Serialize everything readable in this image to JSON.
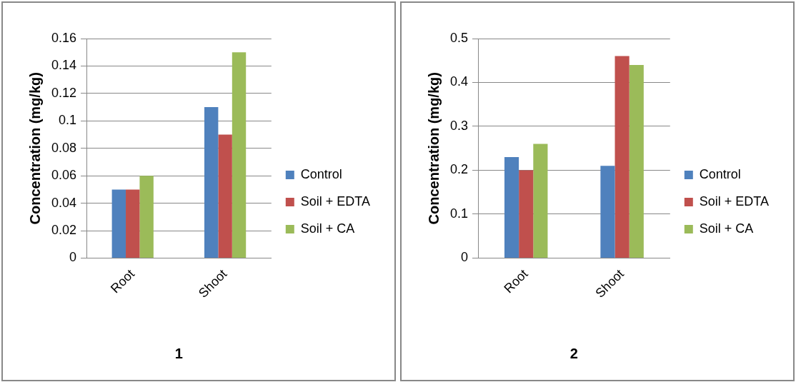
{
  "chart_data": [
    {
      "type": "bar",
      "xlabel": "1",
      "ylabel": "Concentration (mg/kg)",
      "categories": [
        "Root",
        "Shoot"
      ],
      "series": [
        {
          "name": "Control",
          "color": "#4f81bd",
          "values": [
            0.05,
            0.11
          ]
        },
        {
          "name": "Soil + EDTA",
          "color": "#c0504d",
          "values": [
            0.05,
            0.09
          ]
        },
        {
          "name": "Soil + CA",
          "color": "#9bbb59",
          "values": [
            0.06,
            0.15
          ]
        }
      ],
      "ylim": [
        0,
        0.16
      ],
      "yticks": [
        0,
        0.02,
        0.04,
        0.06,
        0.08,
        0.1,
        0.12,
        0.14,
        0.16
      ],
      "grid": "y",
      "legend": "right"
    },
    {
      "type": "bar",
      "xlabel": "2",
      "ylabel": "Concentration (mg/kg)",
      "categories": [
        "Root",
        "Shoot"
      ],
      "series": [
        {
          "name": "Control",
          "color": "#4f81bd",
          "values": [
            0.23,
            0.21
          ]
        },
        {
          "name": "Soil + EDTA",
          "color": "#c0504d",
          "values": [
            0.2,
            0.46
          ]
        },
        {
          "name": "Soil + CA",
          "color": "#9bbb59",
          "values": [
            0.26,
            0.44
          ]
        }
      ],
      "ylim": [
        0,
        0.5
      ],
      "yticks": [
        0,
        0.1,
        0.2,
        0.3,
        0.4,
        0.5
      ],
      "grid": "y",
      "legend": "right"
    }
  ]
}
